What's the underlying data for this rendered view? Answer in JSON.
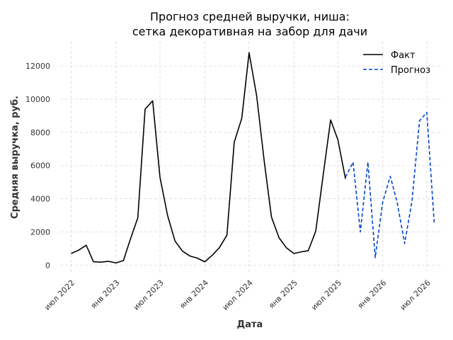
{
  "chart_data": {
    "type": "line",
    "title_lines": [
      "Прогноз средней выручки, ниша:",
      "сетка декоративная на забор для дачи"
    ],
    "xlabel": "Дата",
    "ylabel": "Средняя выручка, руб.",
    "ylim": [
      -500,
      13500
    ],
    "xlim": [
      "2022-05-17",
      "2026-09-03"
    ],
    "y_ticks": [
      0,
      2000,
      4000,
      6000,
      8000,
      10000,
      12000
    ],
    "x_ticks": [
      {
        "date": "2022-07-01",
        "label": "июл 2022"
      },
      {
        "date": "2023-01-01",
        "label": "янв 2023"
      },
      {
        "date": "2023-07-01",
        "label": "июл 2023"
      },
      {
        "date": "2024-01-01",
        "label": "янв 2024"
      },
      {
        "date": "2024-07-01",
        "label": "июл 2024"
      },
      {
        "date": "2025-01-01",
        "label": "янв 2025"
      },
      {
        "date": "2025-07-01",
        "label": "июл 2025"
      },
      {
        "date": "2026-01-01",
        "label": "янв 2026"
      },
      {
        "date": "2026-07-01",
        "label": "июл 2026"
      }
    ],
    "grid": true,
    "legend_position": "top-right",
    "series": [
      {
        "name": "Факт",
        "color": "#000000",
        "style": "solid",
        "points": [
          {
            "x": "2022-07-01",
            "y": 700
          },
          {
            "x": "2022-08-01",
            "y": 900
          },
          {
            "x": "2022-09-01",
            "y": 1200
          },
          {
            "x": "2022-10-01",
            "y": 200
          },
          {
            "x": "2022-11-01",
            "y": 180
          },
          {
            "x": "2022-12-01",
            "y": 230
          },
          {
            "x": "2023-01-01",
            "y": 130
          },
          {
            "x": "2023-02-01",
            "y": 280
          },
          {
            "x": "2023-03-01",
            "y": 1550
          },
          {
            "x": "2023-04-01",
            "y": 2850
          },
          {
            "x": "2023-05-01",
            "y": 9400
          },
          {
            "x": "2023-06-01",
            "y": 9900
          },
          {
            "x": "2023-07-01",
            "y": 5300
          },
          {
            "x": "2023-08-01",
            "y": 3000
          },
          {
            "x": "2023-09-01",
            "y": 1450
          },
          {
            "x": "2023-10-01",
            "y": 850
          },
          {
            "x": "2023-11-01",
            "y": 550
          },
          {
            "x": "2023-12-01",
            "y": 420
          },
          {
            "x": "2024-01-01",
            "y": 200
          },
          {
            "x": "2024-02-01",
            "y": 600
          },
          {
            "x": "2024-03-01",
            "y": 1050
          },
          {
            "x": "2024-04-01",
            "y": 1800
          },
          {
            "x": "2024-05-01",
            "y": 7400
          },
          {
            "x": "2024-06-01",
            "y": 8850
          },
          {
            "x": "2024-07-01",
            "y": 12800
          },
          {
            "x": "2024-08-01",
            "y": 10200
          },
          {
            "x": "2024-09-01",
            "y": 6300
          },
          {
            "x": "2024-10-01",
            "y": 2900
          },
          {
            "x": "2024-11-01",
            "y": 1650
          },
          {
            "x": "2024-12-01",
            "y": 1050
          },
          {
            "x": "2025-01-01",
            "y": 700
          },
          {
            "x": "2025-02-01",
            "y": 800
          },
          {
            "x": "2025-03-01",
            "y": 870
          },
          {
            "x": "2025-04-01",
            "y": 2050
          },
          {
            "x": "2025-05-01",
            "y": 5400
          },
          {
            "x": "2025-06-01",
            "y": 8750
          },
          {
            "x": "2025-07-01",
            "y": 7550
          },
          {
            "x": "2025-08-01",
            "y": 5200
          }
        ]
      },
      {
        "name": "Прогноз",
        "color": "#0044cc",
        "style": "dashed",
        "points": [
          {
            "x": "2025-08-01",
            "y": 5300
          },
          {
            "x": "2025-09-01",
            "y": 6200
          },
          {
            "x": "2025-10-01",
            "y": 2000
          },
          {
            "x": "2025-11-01",
            "y": 6200
          },
          {
            "x": "2025-12-01",
            "y": 450
          },
          {
            "x": "2026-01-01",
            "y": 3800
          },
          {
            "x": "2026-02-01",
            "y": 5350
          },
          {
            "x": "2026-03-01",
            "y": 3800
          },
          {
            "x": "2026-04-01",
            "y": 1300
          },
          {
            "x": "2026-05-01",
            "y": 3850
          },
          {
            "x": "2026-06-01",
            "y": 8700
          },
          {
            "x": "2026-07-01",
            "y": 9200
          },
          {
            "x": "2026-08-01",
            "y": 2450
          }
        ]
      }
    ]
  }
}
